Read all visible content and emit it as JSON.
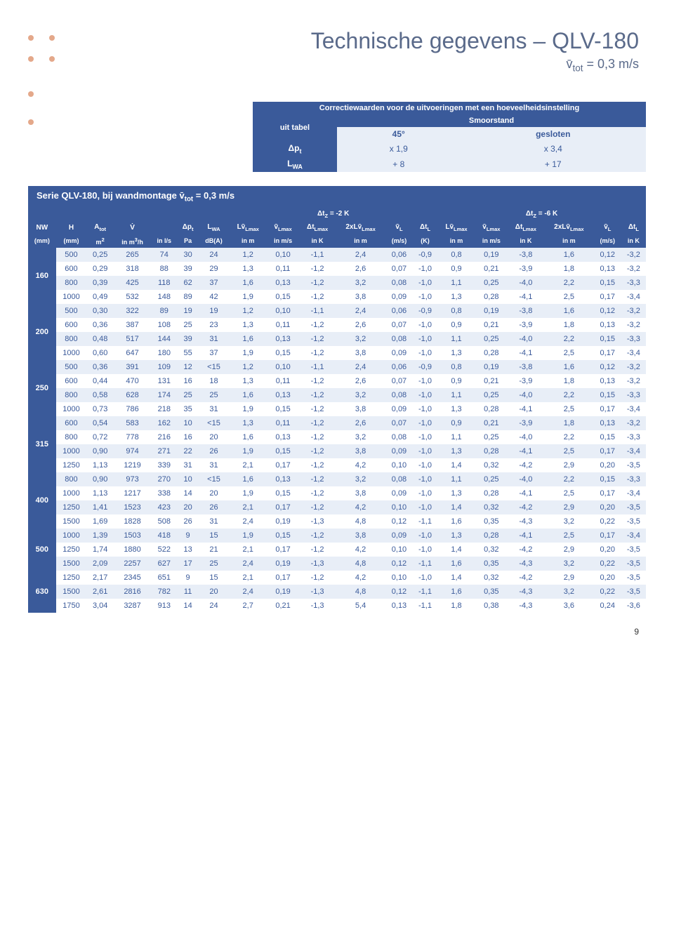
{
  "page_number": "9",
  "title": "Technische gegevens – QLV-180",
  "subtitle_html": "v̄<sub>tot</sub> = 0,3 m/s",
  "corr": {
    "header": "Correctiewaarden voor de uitvoeringen met een hoeveelheidsinstelling",
    "cols": [
      "uit tabel",
      "Smoorstand",
      ""
    ],
    "subcols": [
      "",
      "45°",
      "gesloten"
    ],
    "rows": [
      {
        "label_html": "Δp<sub>t</sub>",
        "c1": "x 1,9",
        "c2": "x 3,4"
      },
      {
        "label_html": "L<sub>WA</sub>",
        "c1": "+ 8",
        "c2": "+ 17"
      }
    ]
  },
  "main": {
    "title_html": "Serie QLV-180, bij wandmontage v̄<sub>tot</sub> = 0,3 m/s",
    "group_labels": {
      "left_html": "Δt<sub>Z</sub> = -2 K",
      "right_html": "Δt<sub>Z</sub> = -6 K"
    },
    "col_headers_html": [
      "NW",
      "H",
      "A<sub>tot</sub>",
      "V̇",
      "",
      "Δp<sub>t</sub>",
      "L<sub>WA</sub>",
      "Lv̄<sub>Lmax</sub>",
      "v̄<sub>Lmax</sub>",
      "Δt<sub>Lmax</sub>",
      "2xLv̄<sub>Lmax</sub>",
      "v̄<sub>L</sub>",
      "Δt<sub>L</sub>",
      "Lv̄<sub>Lmax</sub>",
      "v̄<sub>Lmax</sub>",
      "Δt<sub>Lmax</sub>",
      "2xLv̄<sub>Lmax</sub>",
      "v̄<sub>L</sub>",
      "Δt<sub>L</sub>"
    ],
    "unit_headers_html": [
      "(mm)",
      "(mm)",
      "m<sup>2</sup>",
      "in m<sup>3</sup>/h",
      "in l/s",
      "Pa",
      "dB(A)",
      "in m",
      "in m/s",
      "in K",
      "in m",
      "(m/s)",
      "(K)",
      "in m",
      "in m/s",
      "in K",
      "in m",
      "(m/s)",
      "in K"
    ],
    "groups": [
      {
        "nw": "160",
        "rows": [
          [
            "500",
            "0,25",
            "265",
            "74",
            "30",
            "24",
            "1,2",
            "0,10",
            "-1,1",
            "2,4",
            "0,06",
            "-0,9",
            "0,8",
            "0,19",
            "-3,8",
            "1,6",
            "0,12",
            "-3,2"
          ],
          [
            "600",
            "0,29",
            "318",
            "88",
            "39",
            "29",
            "1,3",
            "0,11",
            "-1,2",
            "2,6",
            "0,07",
            "-1,0",
            "0,9",
            "0,21",
            "-3,9",
            "1,8",
            "0,13",
            "-3,2"
          ],
          [
            "800",
            "0,39",
            "425",
            "118",
            "62",
            "37",
            "1,6",
            "0,13",
            "-1,2",
            "3,2",
            "0,08",
            "-1,0",
            "1,1",
            "0,25",
            "-4,0",
            "2,2",
            "0,15",
            "-3,3"
          ],
          [
            "1000",
            "0,49",
            "532",
            "148",
            "89",
            "42",
            "1,9",
            "0,15",
            "-1,2",
            "3,8",
            "0,09",
            "-1,0",
            "1,3",
            "0,28",
            "-4,1",
            "2,5",
            "0,17",
            "-3,4"
          ]
        ]
      },
      {
        "nw": "200",
        "rows": [
          [
            "500",
            "0,30",
            "322",
            "89",
            "19",
            "19",
            "1,2",
            "0,10",
            "-1,1",
            "2,4",
            "0,06",
            "-0,9",
            "0,8",
            "0,19",
            "-3,8",
            "1,6",
            "0,12",
            "-3,2"
          ],
          [
            "600",
            "0,36",
            "387",
            "108",
            "25",
            "23",
            "1,3",
            "0,11",
            "-1,2",
            "2,6",
            "0,07",
            "-1,0",
            "0,9",
            "0,21",
            "-3,9",
            "1,8",
            "0,13",
            "-3,2"
          ],
          [
            "800",
            "0,48",
            "517",
            "144",
            "39",
            "31",
            "1,6",
            "0,13",
            "-1,2",
            "3,2",
            "0,08",
            "-1,0",
            "1,1",
            "0,25",
            "-4,0",
            "2,2",
            "0,15",
            "-3,3"
          ],
          [
            "1000",
            "0,60",
            "647",
            "180",
            "55",
            "37",
            "1,9",
            "0,15",
            "-1,2",
            "3,8",
            "0,09",
            "-1,0",
            "1,3",
            "0,28",
            "-4,1",
            "2,5",
            "0,17",
            "-3,4"
          ]
        ]
      },
      {
        "nw": "250",
        "rows": [
          [
            "500",
            "0,36",
            "391",
            "109",
            "12",
            "<15",
            "1,2",
            "0,10",
            "-1,1",
            "2,4",
            "0,06",
            "-0,9",
            "0,8",
            "0,19",
            "-3,8",
            "1,6",
            "0,12",
            "-3,2"
          ],
          [
            "600",
            "0,44",
            "470",
            "131",
            "16",
            "18",
            "1,3",
            "0,11",
            "-1,2",
            "2,6",
            "0,07",
            "-1,0",
            "0,9",
            "0,21",
            "-3,9",
            "1,8",
            "0,13",
            "-3,2"
          ],
          [
            "800",
            "0,58",
            "628",
            "174",
            "25",
            "25",
            "1,6",
            "0,13",
            "-1,2",
            "3,2",
            "0,08",
            "-1,0",
            "1,1",
            "0,25",
            "-4,0",
            "2,2",
            "0,15",
            "-3,3"
          ],
          [
            "1000",
            "0,73",
            "786",
            "218",
            "35",
            "31",
            "1,9",
            "0,15",
            "-1,2",
            "3,8",
            "0,09",
            "-1,0",
            "1,3",
            "0,28",
            "-4,1",
            "2,5",
            "0,17",
            "-3,4"
          ]
        ]
      },
      {
        "nw": "315",
        "rows": [
          [
            "600",
            "0,54",
            "583",
            "162",
            "10",
            "<15",
            "1,3",
            "0,11",
            "-1,2",
            "2,6",
            "0,07",
            "-1,0",
            "0,9",
            "0,21",
            "-3,9",
            "1,8",
            "0,13",
            "-3,2"
          ],
          [
            "800",
            "0,72",
            "778",
            "216",
            "16",
            "20",
            "1,6",
            "0,13",
            "-1,2",
            "3,2",
            "0,08",
            "-1,0",
            "1,1",
            "0,25",
            "-4,0",
            "2,2",
            "0,15",
            "-3,3"
          ],
          [
            "1000",
            "0,90",
            "974",
            "271",
            "22",
            "26",
            "1,9",
            "0,15",
            "-1,2",
            "3,8",
            "0,09",
            "-1,0",
            "1,3",
            "0,28",
            "-4,1",
            "2,5",
            "0,17",
            "-3,4"
          ],
          [
            "1250",
            "1,13",
            "1219",
            "339",
            "31",
            "31",
            "2,1",
            "0,17",
            "-1,2",
            "4,2",
            "0,10",
            "-1,0",
            "1,4",
            "0,32",
            "-4,2",
            "2,9",
            "0,20",
            "-3,5"
          ]
        ]
      },
      {
        "nw": "400",
        "rows": [
          [
            "800",
            "0,90",
            "973",
            "270",
            "10",
            "<15",
            "1,6",
            "0,13",
            "-1,2",
            "3,2",
            "0,08",
            "-1,0",
            "1,1",
            "0,25",
            "-4,0",
            "2,2",
            "0,15",
            "-3,3"
          ],
          [
            "1000",
            "1,13",
            "1217",
            "338",
            "14",
            "20",
            "1,9",
            "0,15",
            "-1,2",
            "3,8",
            "0,09",
            "-1,0",
            "1,3",
            "0,28",
            "-4,1",
            "2,5",
            "0,17",
            "-3,4"
          ],
          [
            "1250",
            "1,41",
            "1523",
            "423",
            "20",
            "26",
            "2,1",
            "0,17",
            "-1,2",
            "4,2",
            "0,10",
            "-1,0",
            "1,4",
            "0,32",
            "-4,2",
            "2,9",
            "0,20",
            "-3,5"
          ],
          [
            "1500",
            "1,69",
            "1828",
            "508",
            "26",
            "31",
            "2,4",
            "0,19",
            "-1,3",
            "4,8",
            "0,12",
            "-1,1",
            "1,6",
            "0,35",
            "-4,3",
            "3,2",
            "0,22",
            "-3,5"
          ]
        ]
      },
      {
        "nw": "500",
        "rows": [
          [
            "1000",
            "1,39",
            "1503",
            "418",
            "9",
            "15",
            "1,9",
            "0,15",
            "-1,2",
            "3,8",
            "0,09",
            "-1,0",
            "1,3",
            "0,28",
            "-4,1",
            "2,5",
            "0,17",
            "-3,4"
          ],
          [
            "1250",
            "1,74",
            "1880",
            "522",
            "13",
            "21",
            "2,1",
            "0,17",
            "-1,2",
            "4,2",
            "0,10",
            "-1,0",
            "1,4",
            "0,32",
            "-4,2",
            "2,9",
            "0,20",
            "-3,5"
          ],
          [
            "1500",
            "2,09",
            "2257",
            "627",
            "17",
            "25",
            "2,4",
            "0,19",
            "-1,3",
            "4,8",
            "0,12",
            "-1,1",
            "1,6",
            "0,35",
            "-4,3",
            "3,2",
            "0,22",
            "-3,5"
          ]
        ]
      },
      {
        "nw": "630",
        "rows": [
          [
            "1250",
            "2,17",
            "2345",
            "651",
            "9",
            "15",
            "2,1",
            "0,17",
            "-1,2",
            "4,2",
            "0,10",
            "-1,0",
            "1,4",
            "0,32",
            "-4,2",
            "2,9",
            "0,20",
            "-3,5"
          ],
          [
            "1500",
            "2,61",
            "2816",
            "782",
            "11",
            "20",
            "2,4",
            "0,19",
            "-1,3",
            "4,8",
            "0,12",
            "-1,1",
            "1,6",
            "0,35",
            "-4,3",
            "3,2",
            "0,22",
            "-3,5"
          ],
          [
            "1750",
            "3,04",
            "3287",
            "913",
            "14",
            "24",
            "2,7",
            "0,21",
            "-1,3",
            "5,4",
            "0,13",
            "-1,1",
            "1,8",
            "0,38",
            "-4,3",
            "3,6",
            "0,24",
            "-3,6"
          ]
        ]
      }
    ]
  },
  "colors": {
    "accent_blue": "#3a5a9a",
    "light_blue": "#e8eef7",
    "dot": "#e4a88a",
    "title": "#5a6a8a"
  }
}
